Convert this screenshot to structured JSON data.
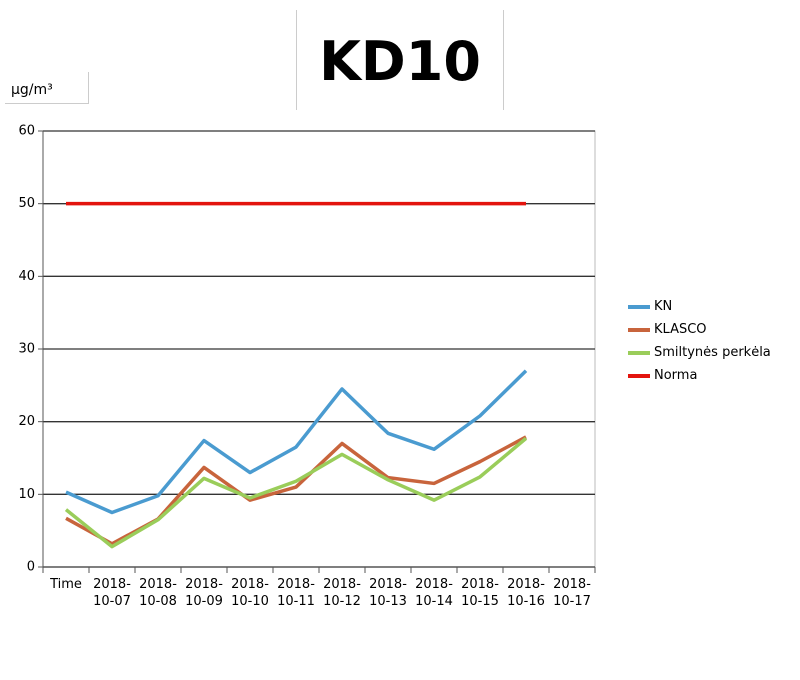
{
  "chart_data": {
    "type": "line",
    "title": "KD10",
    "y_label": "µg/m³",
    "categories": [
      "Time",
      "2018-10-07",
      "2018-10-08",
      "2018-10-09",
      "2018-10-10",
      "2018-10-11",
      "2018-10-12",
      "2018-10-13",
      "2018-10-14",
      "2018-10-15",
      "2018-10-16",
      "2018-10-17"
    ],
    "series": [
      {
        "name": "KN",
        "color": "#4a9bd0",
        "values": [
          10.3,
          7.5,
          9.8,
          17.4,
          13.0,
          16.5,
          24.5,
          18.4,
          16.2,
          20.8,
          27.0,
          null
        ]
      },
      {
        "name": "KLASCO",
        "color": "#c8643c",
        "values": [
          6.7,
          3.2,
          6.6,
          13.7,
          9.2,
          11.0,
          17.0,
          12.3,
          11.5,
          14.5,
          17.9,
          null
        ]
      },
      {
        "name": "Smiltynės perkėla",
        "color": "#9acd5a",
        "values": [
          7.9,
          2.8,
          6.5,
          12.2,
          9.5,
          11.8,
          15.5,
          12.0,
          9.2,
          12.4,
          17.7,
          null
        ]
      },
      {
        "name": "Norma",
        "color": "#e3140e",
        "values": [
          50,
          50,
          50,
          50,
          50,
          50,
          50,
          50,
          50,
          50,
          50,
          null
        ]
      }
    ],
    "ylim": [
      0,
      60
    ],
    "yticks": [
      0,
      10,
      20,
      30,
      40,
      50,
      60
    ],
    "grid": true,
    "legend": "right"
  }
}
